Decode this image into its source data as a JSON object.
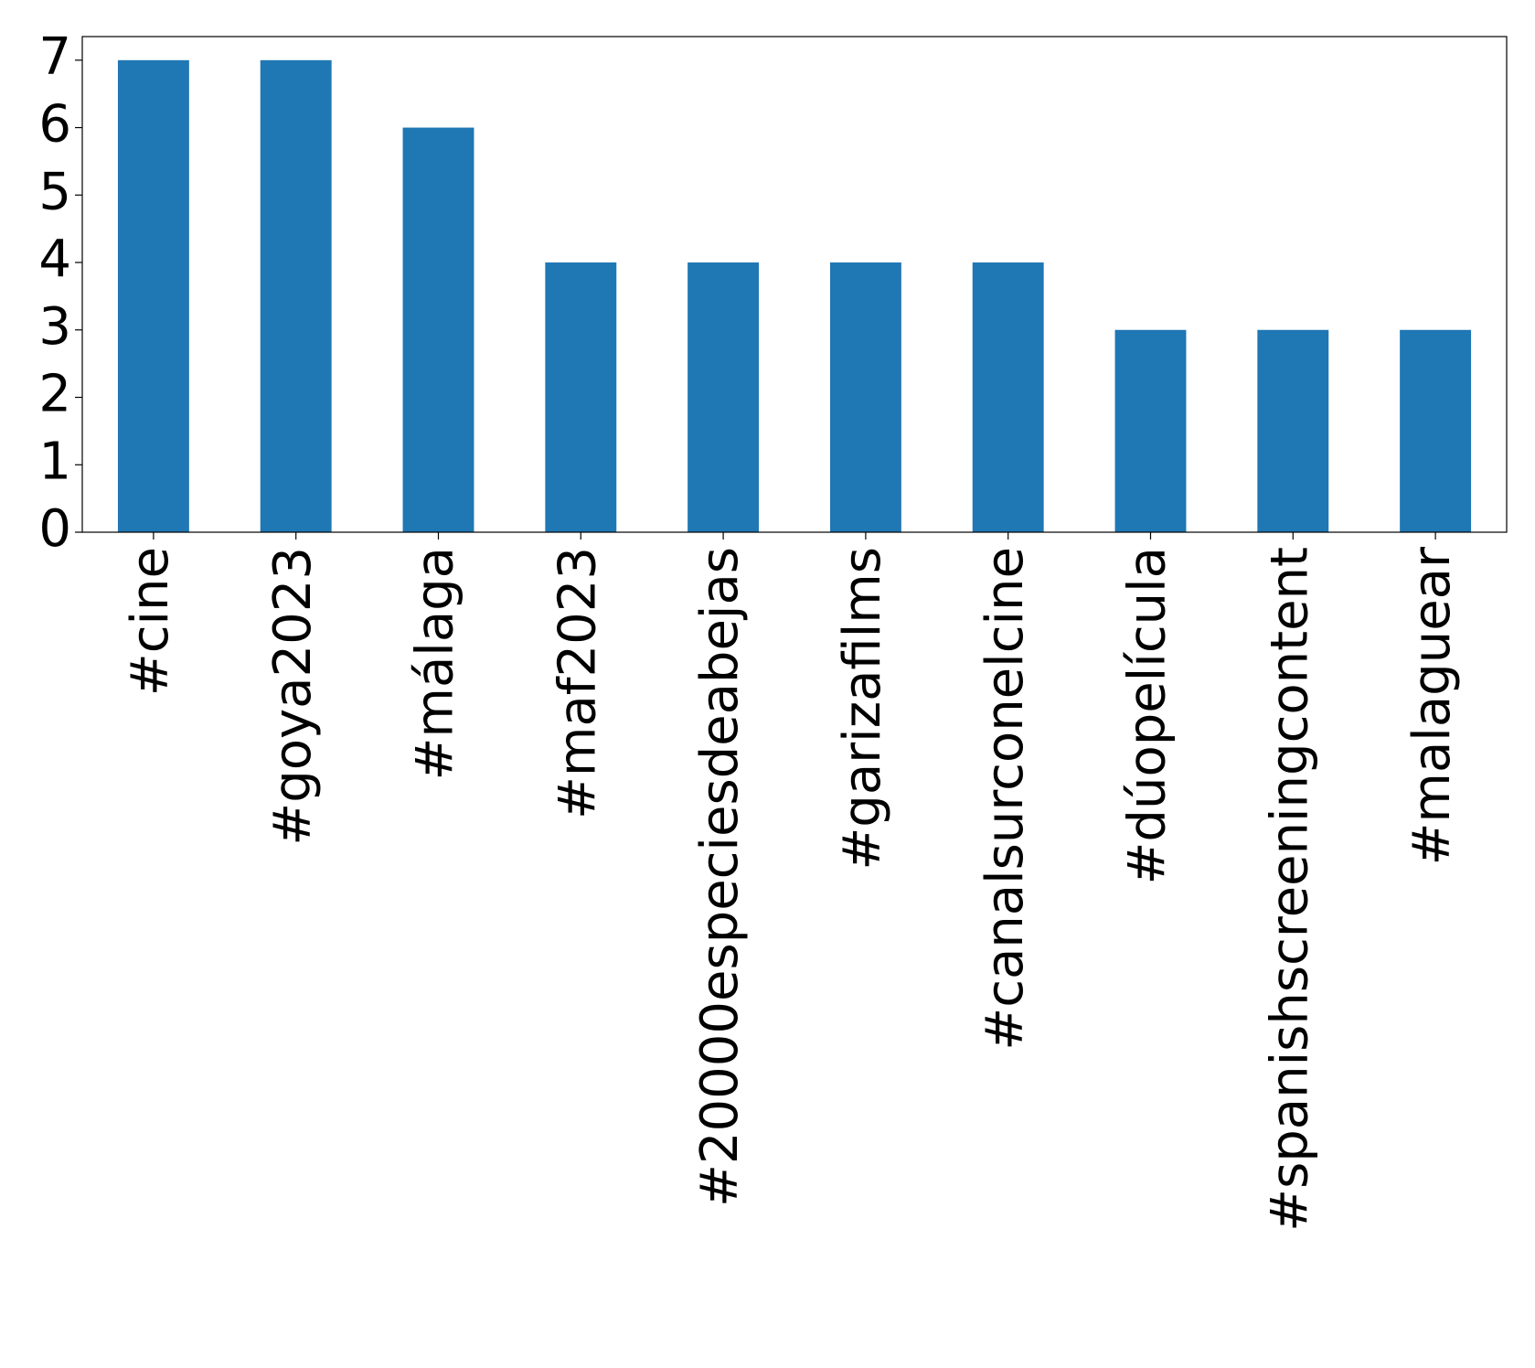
{
  "chart_data": {
    "type": "bar",
    "categories": [
      "#cine",
      "#goya2023",
      "#málaga",
      "#maf2023",
      "#20000especiesdeabejas",
      "#garizafilms",
      "#canalsurconelcine",
      "#dúopelícula",
      "#spanishscreeningcontent",
      "#malaguear"
    ],
    "values": [
      7,
      7,
      6,
      4,
      4,
      4,
      4,
      3,
      3,
      3
    ],
    "color": "#1f77b4",
    "ylim": [
      0,
      7.35
    ],
    "yticks": [
      0,
      1,
      2,
      3,
      4,
      5,
      6,
      7
    ],
    "grid": false
  }
}
